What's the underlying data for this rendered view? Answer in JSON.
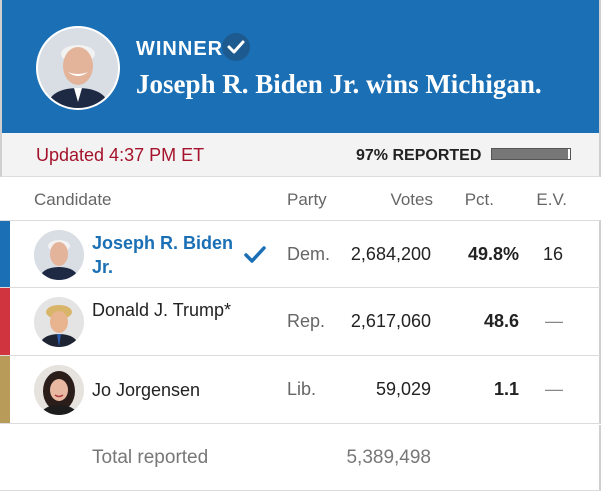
{
  "banner": {
    "winner_label": "WINNER",
    "headline": "Joseph R. Biden Jr. wins Michigan.",
    "background": "#1a6fb5"
  },
  "status": {
    "updated": "Updated 4:37 PM ET",
    "reported": "97% REPORTED",
    "reported_fraction": 0.97
  },
  "table": {
    "headers": {
      "candidate": "Candidate",
      "party": "Party",
      "votes": "Votes",
      "pct": "Pct.",
      "ev": "E.V."
    },
    "rows": [
      {
        "name": "Joseph R. Biden Jr.",
        "party": "Dem.",
        "votes": "2,684,200",
        "pct": "49.8%",
        "ev": "16",
        "winner": true,
        "party_color": "#1a6fb5"
      },
      {
        "name": "Donald J. Trump*",
        "party": "Rep.",
        "votes": "2,617,060",
        "pct": "48.6",
        "ev": "—",
        "winner": false,
        "party_color": "#d0343f"
      },
      {
        "name": "Jo Jorgensen",
        "party": "Lib.",
        "votes": "59,029",
        "pct": "1.1",
        "ev": "—",
        "winner": false,
        "party_color": "#b89a59"
      }
    ],
    "total_label": "Total reported",
    "total_votes": "5,389,498"
  },
  "icons": {
    "winner_check": "check-icon",
    "avatar": "avatar"
  }
}
